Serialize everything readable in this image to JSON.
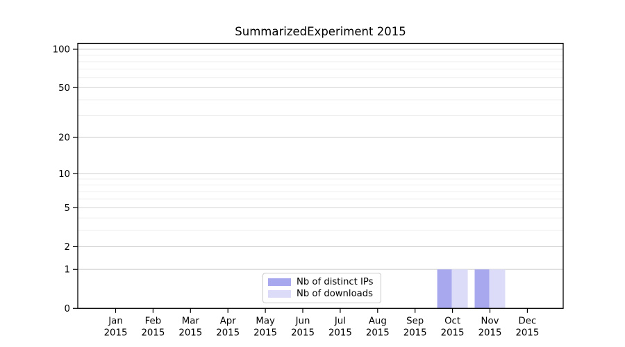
{
  "chart_data": {
    "type": "bar",
    "title": "SummarizedExperiment 2015",
    "categories": [
      "Jan",
      "Feb",
      "Mar",
      "Apr",
      "May",
      "Jun",
      "Jul",
      "Aug",
      "Sep",
      "Oct",
      "Nov",
      "Dec"
    ],
    "year_label": "2015",
    "series": [
      {
        "name": "Nb of distinct IPs",
        "color": "#a8a8ee",
        "values": [
          0,
          0,
          0,
          0,
          0,
          0,
          0,
          0,
          0,
          1,
          1,
          0
        ]
      },
      {
        "name": "Nb of downloads",
        "color": "#dcdcf8",
        "values": [
          0,
          0,
          0,
          0,
          0,
          0,
          0,
          0,
          0,
          1,
          1,
          0
        ]
      }
    ],
    "yscale": "log1p",
    "ylim": [
      0,
      112
    ],
    "yticks": [
      0,
      1,
      2,
      5,
      10,
      20,
      50,
      100
    ],
    "minor_gridlines": [
      3,
      4,
      6,
      7,
      8,
      9,
      30,
      40,
      60,
      70,
      80,
      90
    ],
    "grid": "horizontal",
    "legend_position": "lower center",
    "colors": {
      "axis": "#000000",
      "major_grid": "#d2d2d2",
      "minor_grid": "#efefef",
      "background": "#ffffff",
      "text": "#000000"
    }
  }
}
